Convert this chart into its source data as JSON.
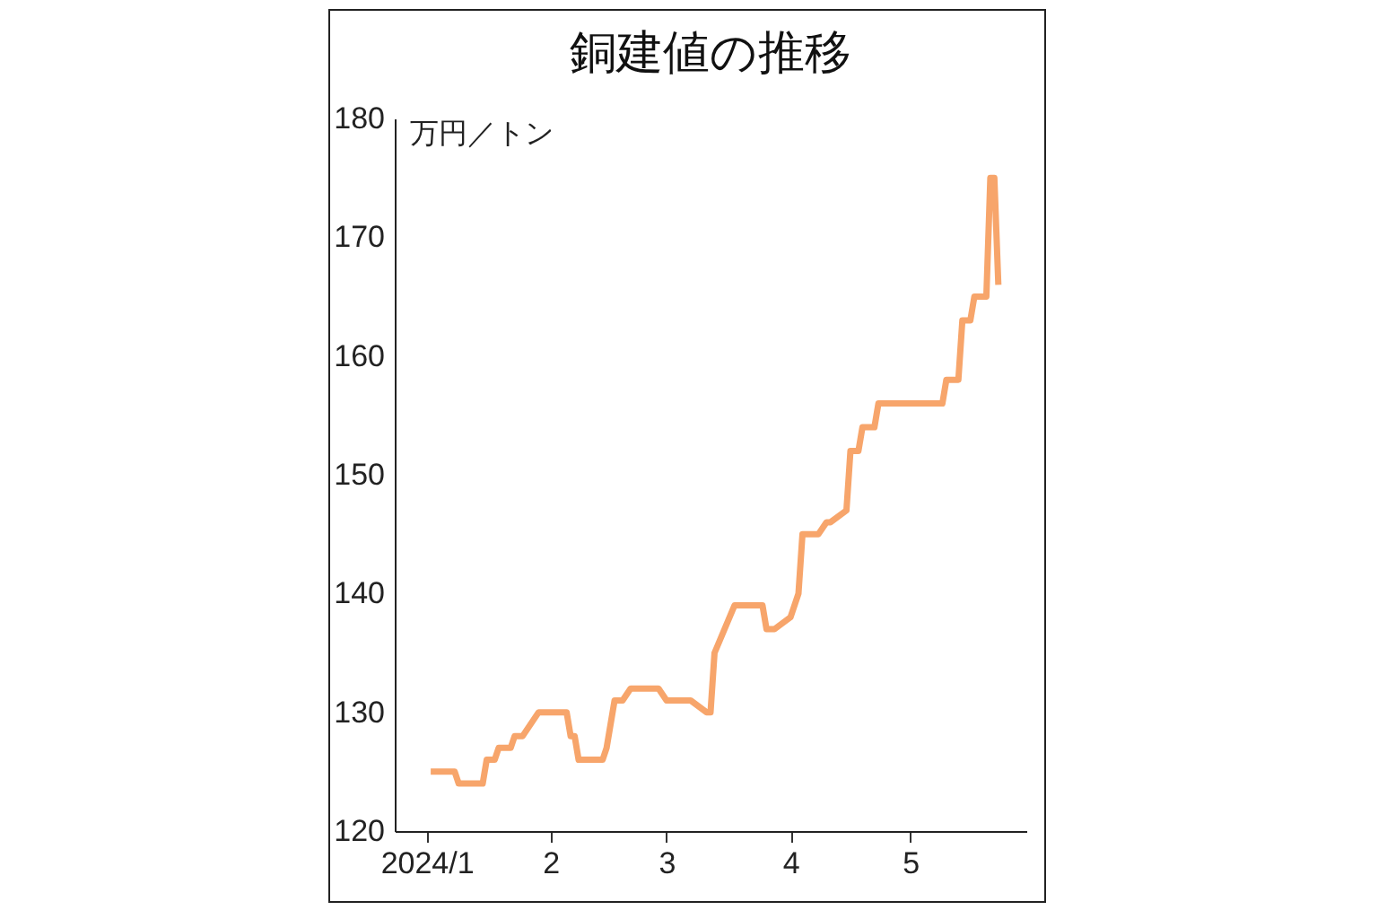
{
  "chart_data": {
    "type": "line",
    "title": "銅建値の推移",
    "ylabel": "万円／トン",
    "x": [
      "2024-01-02",
      "2024-01-08",
      "2024-01-09",
      "2024-01-15",
      "2024-01-16",
      "2024-01-18",
      "2024-01-19",
      "2024-01-22",
      "2024-01-23",
      "2024-01-25",
      "2024-01-29",
      "2024-02-05",
      "2024-02-06",
      "2024-02-07",
      "2024-02-08",
      "2024-02-14",
      "2024-02-15",
      "2024-02-17",
      "2024-02-19",
      "2024-02-21",
      "2024-02-28",
      "2024-03-01",
      "2024-03-07",
      "2024-03-11",
      "2024-03-12",
      "2024-03-13",
      "2024-03-18",
      "2024-03-25",
      "2024-03-26",
      "2024-03-28",
      "2024-04-01",
      "2024-04-03",
      "2024-04-04",
      "2024-04-08",
      "2024-04-10",
      "2024-04-11",
      "2024-04-15",
      "2024-04-16",
      "2024-04-18",
      "2024-04-19",
      "2024-04-22",
      "2024-04-23",
      "2024-05-09",
      "2024-05-10",
      "2024-05-13",
      "2024-05-14",
      "2024-05-16",
      "2024-05-17",
      "2024-05-20",
      "2024-05-21",
      "2024-05-22",
      "2024-05-23"
    ],
    "series": [
      {
        "color": "#f7a56b",
        "values": [
          125,
          125,
          124,
          124,
          126,
          126,
          127,
          127,
          128,
          128,
          130,
          130,
          128,
          128,
          126,
          126,
          127,
          131,
          131,
          132,
          132,
          131,
          131,
          130,
          130,
          135,
          139,
          139,
          137,
          137,
          138,
          140,
          145,
          145,
          146,
          146,
          147,
          152,
          152,
          154,
          154,
          156,
          156,
          158,
          158,
          163,
          163,
          165,
          165,
          175,
          175,
          166
        ]
      }
    ],
    "xlim": [
      "2023-12-24",
      "2024-05-30"
    ],
    "xticks": [
      {
        "value": "2024-01-01",
        "label": "2024/1"
      },
      {
        "value": "2024-02-01",
        "label": "2"
      },
      {
        "value": "2024-03-01",
        "label": "3"
      },
      {
        "value": "2024-04-01",
        "label": "4"
      },
      {
        "value": "2024-05-01",
        "label": "5"
      }
    ],
    "ylim": [
      120,
      180
    ],
    "yticks": [
      120,
      130,
      140,
      150,
      160,
      170,
      180
    ],
    "line_style": "solid"
  }
}
